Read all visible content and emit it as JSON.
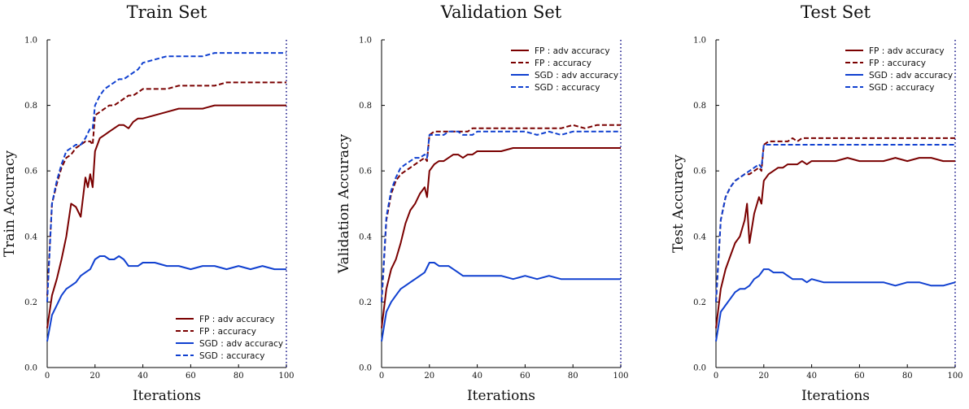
{
  "colors": {
    "fp": "#7a0000",
    "sgd": "#1040d0",
    "vline": "#1a1a8a"
  },
  "chart_data": [
    {
      "type": "line",
      "title": "Train Set",
      "xlabel": "Iterations",
      "ylabel": "Train Accuracy",
      "xlim": [
        0,
        100
      ],
      "ylim": [
        0,
        1.0
      ],
      "xticks": [
        "0",
        "20",
        "40",
        "60",
        "80",
        "100"
      ],
      "yticks": [
        "0.0",
        "0.2",
        "0.4",
        "0.6",
        "0.8",
        "1.0"
      ],
      "legend_position": "lower-right",
      "vline_x": 100,
      "series": [
        {
          "name": "FP : adv accuracy",
          "color_key": "fp",
          "dashed": false,
          "x": [
            0,
            2,
            4,
            6,
            8,
            10,
            12,
            14,
            16,
            17,
            18,
            19,
            20,
            22,
            24,
            26,
            28,
            30,
            32,
            34,
            36,
            38,
            40,
            45,
            50,
            55,
            60,
            65,
            70,
            75,
            80,
            85,
            90,
            95,
            100
          ],
          "values": [
            0.12,
            0.22,
            0.27,
            0.33,
            0.4,
            0.5,
            0.49,
            0.46,
            0.58,
            0.55,
            0.59,
            0.55,
            0.66,
            0.7,
            0.71,
            0.72,
            0.73,
            0.74,
            0.74,
            0.73,
            0.75,
            0.76,
            0.76,
            0.77,
            0.78,
            0.79,
            0.79,
            0.79,
            0.8,
            0.8,
            0.8,
            0.8,
            0.8,
            0.8,
            0.8
          ]
        },
        {
          "name": "FP : accuracy",
          "color_key": "fp",
          "dashed": true,
          "x": [
            0,
            2,
            4,
            6,
            8,
            10,
            12,
            14,
            16,
            18,
            19,
            20,
            22,
            24,
            26,
            28,
            30,
            32,
            34,
            36,
            38,
            40,
            45,
            50,
            55,
            60,
            65,
            70,
            75,
            80,
            85,
            90,
            95,
            100
          ],
          "values": [
            0.22,
            0.5,
            0.56,
            0.61,
            0.64,
            0.65,
            0.67,
            0.68,
            0.69,
            0.69,
            0.68,
            0.77,
            0.78,
            0.79,
            0.8,
            0.8,
            0.81,
            0.82,
            0.83,
            0.83,
            0.84,
            0.85,
            0.85,
            0.85,
            0.86,
            0.86,
            0.86,
            0.86,
            0.87,
            0.87,
            0.87,
            0.87,
            0.87,
            0.87
          ]
        },
        {
          "name": "SGD : adv accuracy",
          "color_key": "sgd",
          "dashed": false,
          "x": [
            0,
            2,
            4,
            6,
            8,
            10,
            12,
            14,
            16,
            18,
            20,
            22,
            24,
            26,
            28,
            30,
            32,
            34,
            36,
            38,
            40,
            45,
            50,
            55,
            60,
            65,
            70,
            75,
            80,
            85,
            90,
            95,
            100
          ],
          "values": [
            0.08,
            0.16,
            0.19,
            0.22,
            0.24,
            0.25,
            0.26,
            0.28,
            0.29,
            0.3,
            0.33,
            0.34,
            0.34,
            0.33,
            0.33,
            0.34,
            0.33,
            0.31,
            0.31,
            0.31,
            0.32,
            0.32,
            0.31,
            0.31,
            0.3,
            0.31,
            0.31,
            0.3,
            0.31,
            0.3,
            0.31,
            0.3,
            0.3
          ]
        },
        {
          "name": "SGD : accuracy",
          "color_key": "sgd",
          "dashed": true,
          "x": [
            0,
            2,
            4,
            6,
            8,
            10,
            12,
            14,
            16,
            18,
            19,
            20,
            22,
            24,
            26,
            28,
            30,
            32,
            34,
            36,
            38,
            40,
            45,
            50,
            55,
            60,
            65,
            70,
            75,
            80,
            85,
            90,
            95,
            100
          ],
          "values": [
            0.2,
            0.5,
            0.57,
            0.62,
            0.66,
            0.67,
            0.68,
            0.68,
            0.7,
            0.73,
            0.73,
            0.8,
            0.83,
            0.85,
            0.86,
            0.87,
            0.88,
            0.88,
            0.89,
            0.9,
            0.91,
            0.93,
            0.94,
            0.95,
            0.95,
            0.95,
            0.95,
            0.96,
            0.96,
            0.96,
            0.96,
            0.96,
            0.96,
            0.96
          ]
        }
      ]
    },
    {
      "type": "line",
      "title": "Validation Set",
      "xlabel": "Iterations",
      "ylabel": "Validation Accuracy",
      "xlim": [
        0,
        100
      ],
      "ylim": [
        0,
        1.0
      ],
      "xticks": [
        "0",
        "20",
        "40",
        "60",
        "80",
        "100"
      ],
      "yticks": [
        "0.0",
        "0.2",
        "0.4",
        "0.6",
        "0.8",
        "1.0"
      ],
      "legend_position": "top-right",
      "vline_x": 100,
      "series": [
        {
          "name": "FP : adv accuracy",
          "color_key": "fp",
          "dashed": false,
          "x": [
            0,
            2,
            4,
            6,
            8,
            10,
            12,
            14,
            16,
            18,
            19,
            20,
            22,
            24,
            26,
            28,
            30,
            32,
            34,
            36,
            38,
            40,
            45,
            50,
            55,
            60,
            65,
            70,
            75,
            80,
            85,
            90,
            95,
            100
          ],
          "values": [
            0.12,
            0.24,
            0.3,
            0.33,
            0.38,
            0.44,
            0.48,
            0.5,
            0.53,
            0.55,
            0.52,
            0.6,
            0.62,
            0.63,
            0.63,
            0.64,
            0.65,
            0.65,
            0.64,
            0.65,
            0.65,
            0.66,
            0.66,
            0.66,
            0.67,
            0.67,
            0.67,
            0.67,
            0.67,
            0.67,
            0.67,
            0.67,
            0.67,
            0.67
          ]
        },
        {
          "name": "FP : accuracy",
          "color_key": "fp",
          "dashed": true,
          "x": [
            0,
            2,
            4,
            6,
            8,
            10,
            12,
            14,
            16,
            18,
            19,
            20,
            22,
            24,
            26,
            28,
            30,
            32,
            34,
            36,
            38,
            40,
            45,
            50,
            55,
            60,
            65,
            70,
            75,
            80,
            85,
            90,
            95,
            100
          ],
          "values": [
            0.2,
            0.45,
            0.53,
            0.57,
            0.59,
            0.6,
            0.61,
            0.62,
            0.63,
            0.64,
            0.63,
            0.71,
            0.72,
            0.72,
            0.72,
            0.72,
            0.72,
            0.72,
            0.72,
            0.72,
            0.73,
            0.73,
            0.73,
            0.73,
            0.73,
            0.73,
            0.73,
            0.73,
            0.73,
            0.74,
            0.73,
            0.74,
            0.74,
            0.74
          ]
        },
        {
          "name": "SGD : adv accuracy",
          "color_key": "sgd",
          "dashed": false,
          "x": [
            0,
            2,
            4,
            6,
            8,
            10,
            12,
            14,
            16,
            18,
            20,
            22,
            24,
            26,
            28,
            30,
            32,
            34,
            36,
            38,
            40,
            45,
            50,
            55,
            60,
            65,
            70,
            75,
            80,
            85,
            90,
            95,
            100
          ],
          "values": [
            0.08,
            0.17,
            0.2,
            0.22,
            0.24,
            0.25,
            0.26,
            0.27,
            0.28,
            0.29,
            0.32,
            0.32,
            0.31,
            0.31,
            0.31,
            0.3,
            0.29,
            0.28,
            0.28,
            0.28,
            0.28,
            0.28,
            0.28,
            0.27,
            0.28,
            0.27,
            0.28,
            0.27,
            0.27,
            0.27,
            0.27,
            0.27,
            0.27
          ]
        },
        {
          "name": "SGD : accuracy",
          "color_key": "sgd",
          "dashed": true,
          "x": [
            0,
            2,
            4,
            6,
            8,
            10,
            12,
            14,
            16,
            18,
            19,
            20,
            22,
            24,
            26,
            28,
            30,
            32,
            34,
            36,
            38,
            40,
            45,
            50,
            55,
            60,
            65,
            70,
            75,
            80,
            85,
            90,
            95,
            100
          ],
          "values": [
            0.2,
            0.46,
            0.54,
            0.58,
            0.61,
            0.62,
            0.63,
            0.64,
            0.64,
            0.65,
            0.64,
            0.71,
            0.71,
            0.71,
            0.71,
            0.72,
            0.72,
            0.72,
            0.71,
            0.71,
            0.71,
            0.72,
            0.72,
            0.72,
            0.72,
            0.72,
            0.71,
            0.72,
            0.71,
            0.72,
            0.72,
            0.72,
            0.72,
            0.72
          ]
        }
      ]
    },
    {
      "type": "line",
      "title": "Test Set",
      "xlabel": "Iterations",
      "ylabel": "Test Accuracy",
      "xlim": [
        0,
        100
      ],
      "ylim": [
        0,
        1.0
      ],
      "xticks": [
        "0",
        "20",
        "40",
        "60",
        "80",
        "100"
      ],
      "yticks": [
        "0.0",
        "0.2",
        "0.4",
        "0.6",
        "0.8",
        "1.0"
      ],
      "legend_position": "top-right",
      "vline_x": 100,
      "series": [
        {
          "name": "FP : adv accuracy",
          "color_key": "fp",
          "dashed": false,
          "x": [
            0,
            2,
            4,
            6,
            8,
            10,
            12,
            13,
            14,
            16,
            18,
            19,
            20,
            22,
            24,
            26,
            28,
            30,
            32,
            34,
            36,
            38,
            40,
            45,
            50,
            55,
            60,
            65,
            70,
            75,
            80,
            85,
            90,
            95,
            100
          ],
          "values": [
            0.12,
            0.24,
            0.3,
            0.34,
            0.38,
            0.4,
            0.45,
            0.5,
            0.38,
            0.47,
            0.52,
            0.5,
            0.57,
            0.59,
            0.6,
            0.61,
            0.61,
            0.62,
            0.62,
            0.62,
            0.63,
            0.62,
            0.63,
            0.63,
            0.63,
            0.64,
            0.63,
            0.63,
            0.63,
            0.64,
            0.63,
            0.64,
            0.64,
            0.63,
            0.63
          ]
        },
        {
          "name": "FP : accuracy",
          "color_key": "fp",
          "dashed": true,
          "x": [
            0,
            2,
            4,
            6,
            8,
            10,
            12,
            14,
            16,
            18,
            19,
            20,
            22,
            24,
            26,
            28,
            30,
            32,
            34,
            36,
            38,
            40,
            45,
            50,
            55,
            60,
            65,
            70,
            75,
            80,
            85,
            90,
            95,
            100
          ],
          "values": [
            0.2,
            0.45,
            0.52,
            0.55,
            0.57,
            0.58,
            0.59,
            0.59,
            0.6,
            0.61,
            0.6,
            0.68,
            0.69,
            0.69,
            0.69,
            0.69,
            0.69,
            0.7,
            0.69,
            0.7,
            0.7,
            0.7,
            0.7,
            0.7,
            0.7,
            0.7,
            0.7,
            0.7,
            0.7,
            0.7,
            0.7,
            0.7,
            0.7,
            0.7
          ]
        },
        {
          "name": "SGD : adv accuracy",
          "color_key": "sgd",
          "dashed": false,
          "x": [
            0,
            2,
            4,
            6,
            8,
            10,
            12,
            14,
            16,
            18,
            20,
            22,
            24,
            26,
            28,
            30,
            32,
            34,
            36,
            38,
            40,
            45,
            50,
            55,
            60,
            65,
            70,
            75,
            80,
            85,
            90,
            95,
            100
          ],
          "values": [
            0.08,
            0.17,
            0.19,
            0.21,
            0.23,
            0.24,
            0.24,
            0.25,
            0.27,
            0.28,
            0.3,
            0.3,
            0.29,
            0.29,
            0.29,
            0.28,
            0.27,
            0.27,
            0.27,
            0.26,
            0.27,
            0.26,
            0.26,
            0.26,
            0.26,
            0.26,
            0.26,
            0.25,
            0.26,
            0.26,
            0.25,
            0.25,
            0.26
          ]
        },
        {
          "name": "SGD : accuracy",
          "color_key": "sgd",
          "dashed": true,
          "x": [
            0,
            2,
            4,
            6,
            8,
            10,
            12,
            14,
            16,
            18,
            19,
            20,
            22,
            24,
            26,
            28,
            30,
            32,
            34,
            36,
            38,
            40,
            45,
            50,
            55,
            60,
            65,
            70,
            75,
            80,
            85,
            90,
            95,
            100
          ],
          "values": [
            0.2,
            0.45,
            0.52,
            0.55,
            0.57,
            0.58,
            0.59,
            0.6,
            0.61,
            0.62,
            0.61,
            0.68,
            0.68,
            0.68,
            0.68,
            0.68,
            0.68,
            0.68,
            0.68,
            0.68,
            0.68,
            0.68,
            0.68,
            0.68,
            0.68,
            0.68,
            0.68,
            0.68,
            0.68,
            0.68,
            0.68,
            0.68,
            0.68,
            0.68
          ]
        }
      ]
    }
  ]
}
